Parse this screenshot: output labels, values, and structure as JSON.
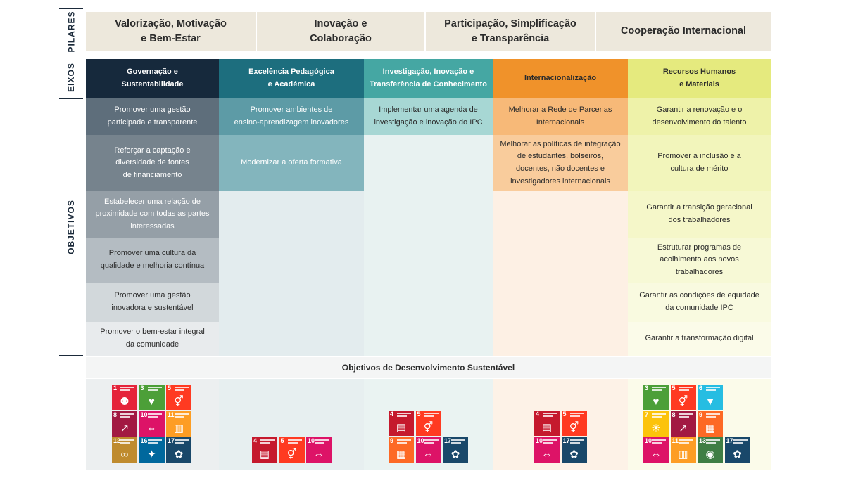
{
  "labels": {
    "pilares": "PILARES",
    "eixos": "EIXOS",
    "objetivos": "OBJETIVOS"
  },
  "pillars": [
    {
      "line1": "Valorização, Motivação",
      "line2": "e Bem-Estar"
    },
    {
      "line1": "Inovação e",
      "line2": "Colaboração"
    },
    {
      "line1": "Participação, Simplificação",
      "line2": "e Transparência"
    },
    {
      "line1": "Cooperação Internacional",
      "line2": ""
    }
  ],
  "axes": [
    {
      "line1": "Governação e",
      "line2": "Sustentabilidade",
      "color": "#16293c",
      "text_color": "#ffffff"
    },
    {
      "line1": "Excelência Pedagógica",
      "line2": "e Académica",
      "color": "#1d6e7e",
      "text_color": "#ffffff"
    },
    {
      "line1": "Investigação, Inovação e",
      "line2": "Transferência de Conhecimento",
      "color": "#45a7a3",
      "text_color": "#ffffff"
    },
    {
      "line1": "Internacionalização",
      "line2": "",
      "color": "#f0922a",
      "text_color": "#2b2b2b"
    },
    {
      "line1": "Recursos Humanos",
      "line2": "e Materiais",
      "color": "#e5ea7e",
      "text_color": "#2b2b2b"
    }
  ],
  "objectives": {
    "governacao": [
      [
        "Promover uma gestão",
        "participada e transparente"
      ],
      [
        "Reforçar a captação e",
        "diversidade de fontes",
        "de financiamento"
      ],
      [
        "Estabelecer uma relação de",
        "proximidade com todas as partes",
        "interessadas"
      ],
      [
        "Promover uma cultura da",
        "qualidade e melhoria contínua"
      ],
      [
        "Promover uma gestão",
        "inovadora e sustentável"
      ],
      [
        "Promover o bem-estar integral",
        "da comunidade"
      ]
    ],
    "excelencia": [
      [
        "Promover ambientes de",
        "ensino-aprendizagem inovadores"
      ],
      [
        "Modernizar a oferta formativa"
      ]
    ],
    "investigacao": [
      [
        "Implementar uma agenda de",
        "investigação e inovação do IPC"
      ]
    ],
    "internacionalizacao": [
      [
        "Melhorar a Rede de Parcerias",
        "Internacionais"
      ],
      [
        "Melhorar as políticas de integração",
        "de estudantes, bolseiros,",
        "docentes, não docentes e",
        "investigadores internacionais"
      ]
    ],
    "recursos": [
      [
        "Garantir a renovação e o",
        "desenvolvimento do talento"
      ],
      [
        "Promover a inclusão e a",
        "cultura de mérito"
      ],
      [
        "Garantir a transição geracional",
        "dos trabalhadores"
      ],
      [
        "Estruturar programas  de",
        "acolhimento aos novos",
        "trabalhadores"
      ],
      [
        "Garantir as condições de equidade",
        "da comunidade IPC"
      ],
      [
        "Garantir a transformação digital"
      ]
    ]
  },
  "ods_title": "Objetivos de Desenvolvimento Sustentável",
  "sdg_colors": {
    "1": "#e5243b",
    "3": "#4c9f38",
    "4": "#c5192d",
    "5": "#ff3a21",
    "6": "#26bde2",
    "7": "#fcc30b",
    "8": "#a21942",
    "9": "#fd6925",
    "10": "#dd1367",
    "11": "#fd9d24",
    "12": "#bf8b2e",
    "13": "#3f7e44",
    "16": "#00689d",
    "17": "#19486a"
  },
  "sdg_groups": {
    "governacao": [
      [
        "1",
        "3",
        "5"
      ],
      [
        "8",
        "10",
        "11"
      ],
      [
        "12",
        "16",
        "17"
      ]
    ],
    "excelencia": [
      [
        "4",
        "5",
        "10"
      ]
    ],
    "investigacao": [
      [
        "4",
        "5"
      ],
      [
        "9",
        "10",
        "17"
      ]
    ],
    "internacionalizacao": [
      [
        "4",
        "5"
      ],
      [
        "10",
        "17"
      ]
    ],
    "recursos": [
      [
        "3",
        "5",
        "6"
      ],
      [
        "7",
        "8",
        "9"
      ],
      [
        "10",
        "11",
        "13",
        "17"
      ]
    ]
  },
  "sdg_icons": {
    "1": "people-icon",
    "3": "heartbeat-icon",
    "4": "book-icon",
    "5": "gender-icon",
    "6": "water-drop-icon",
    "7": "sun-icon",
    "8": "growth-chart-icon",
    "9": "cubes-icon",
    "10": "equality-icon",
    "11": "city-icon",
    "12": "infinity-icon",
    "13": "eye-globe-icon",
    "16": "dove-icon",
    "17": "flower-rings-icon"
  }
}
